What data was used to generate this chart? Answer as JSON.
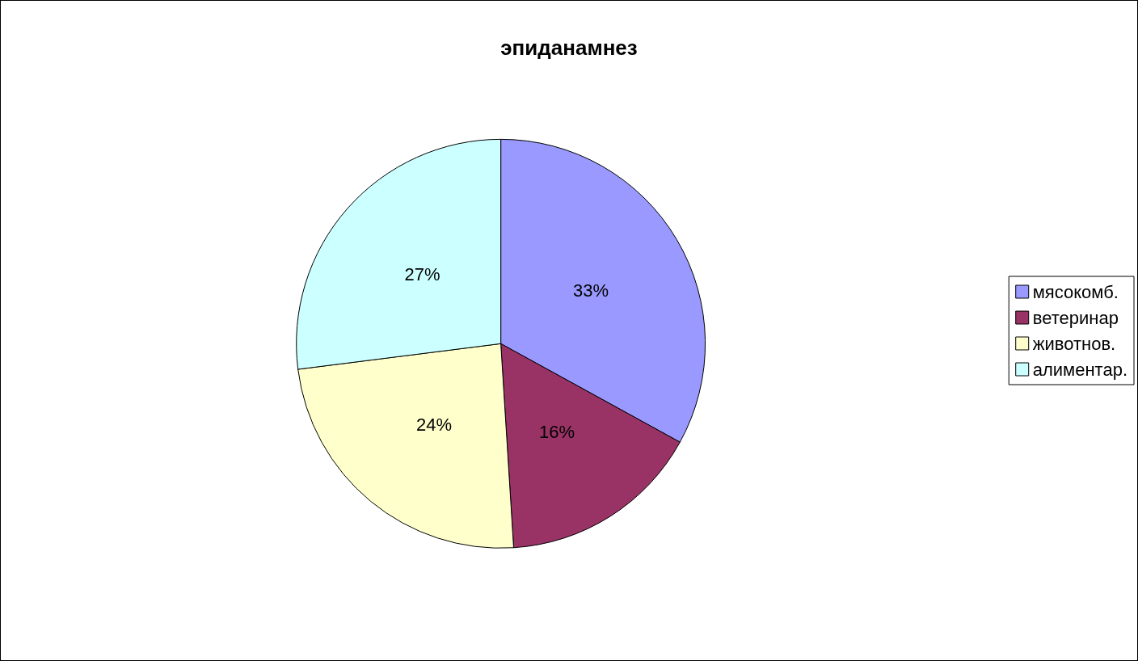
{
  "chart_data": {
    "type": "pie",
    "title": "эпиданамнез",
    "categories": [
      "мясокомб.",
      "ветеринар",
      "животнов.",
      "алиментар."
    ],
    "values": [
      33,
      16,
      24,
      27
    ],
    "colors": [
      "#9999ff",
      "#993366",
      "#ffffcc",
      "#ccffff"
    ],
    "value_labels": [
      "33%",
      "16%",
      "24%",
      "27%"
    ],
    "legend": "right"
  }
}
